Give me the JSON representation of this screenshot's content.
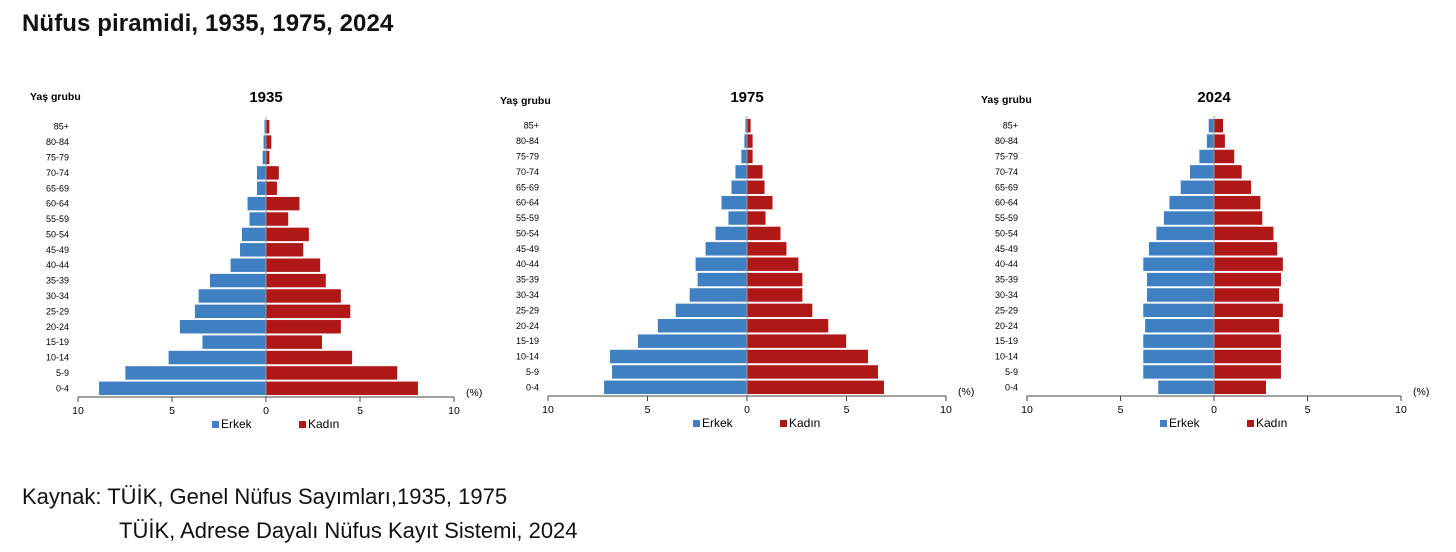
{
  "title": "Nüfus piramidi, 1935, 1975, 2024",
  "source": {
    "line1": "Kaynak: TÜİK, Genel Nüfus Sayımları,1935, 1975",
    "line2": "TÜİK, Adrese Dayalı Nüfus Kayıt Sistemi, 2024"
  },
  "colors": {
    "male": "#3f80c3",
    "female": "#b01818",
    "axis": "#444444"
  },
  "chart_data": [
    {
      "type": "bar",
      "orientation": "horizontal-pyramid",
      "title": "1935",
      "ylabel": "Yaş grubu",
      "xlabel": "(%)",
      "xlim": [
        -10,
        10
      ],
      "xticks": [
        "10",
        "5",
        "0",
        "5",
        "10"
      ],
      "categories": [
        "0-4",
        "5-9",
        "10-14",
        "15-19",
        "20-24",
        "25-29",
        "30-34",
        "35-39",
        "40-44",
        "45-49",
        "50-54",
        "55-59",
        "60-64",
        "65-69",
        "70-74",
        "75-79",
        "80-84",
        "85+"
      ],
      "series": [
        {
          "name": "Erkek",
          "values": [
            8.9,
            7.5,
            5.2,
            3.4,
            4.6,
            3.8,
            3.6,
            3.0,
            1.9,
            1.4,
            1.3,
            0.9,
            1.0,
            0.5,
            0.5,
            0.2,
            0.15,
            0.1
          ]
        },
        {
          "name": "Kadın",
          "values": [
            8.1,
            7.0,
            4.6,
            3.0,
            4.0,
            4.5,
            4.0,
            3.2,
            2.9,
            2.0,
            2.3,
            1.2,
            1.8,
            0.6,
            0.7,
            0.2,
            0.3,
            0.2
          ]
        }
      ],
      "legend": [
        "Erkek",
        "Kadın"
      ]
    },
    {
      "type": "bar",
      "orientation": "horizontal-pyramid",
      "title": "1975",
      "ylabel": "Yaş grubu",
      "xlabel": "(%)",
      "xlim": [
        -10,
        10
      ],
      "xticks": [
        "10",
        "5",
        "0",
        "5",
        "10"
      ],
      "categories": [
        "0-4",
        "5-9",
        "10-14",
        "15-19",
        "20-24",
        "25-29",
        "30-34",
        "35-39",
        "40-44",
        "45-49",
        "50-54",
        "55-59",
        "60-64",
        "65-69",
        "70-74",
        "75-79",
        "80-84",
        "85+"
      ],
      "series": [
        {
          "name": "Erkek",
          "values": [
            7.2,
            6.8,
            6.9,
            5.5,
            4.5,
            3.6,
            2.9,
            2.5,
            2.6,
            2.1,
            1.6,
            0.95,
            1.3,
            0.8,
            0.6,
            0.3,
            0.15,
            0.1
          ]
        },
        {
          "name": "Kadın",
          "values": [
            6.9,
            6.6,
            6.1,
            5.0,
            4.1,
            3.3,
            2.8,
            2.8,
            2.6,
            2.0,
            1.7,
            0.95,
            1.3,
            0.9,
            0.8,
            0.3,
            0.3,
            0.2
          ]
        }
      ],
      "legend": [
        "Erkek",
        "Kadın"
      ]
    },
    {
      "type": "bar",
      "orientation": "horizontal-pyramid",
      "title": "2024",
      "ylabel": "Yaş grubu",
      "xlabel": "(%)",
      "xlim": [
        -10,
        10
      ],
      "xticks": [
        "10",
        "5",
        "0",
        "5",
        "10"
      ],
      "categories": [
        "0-4",
        "5-9",
        "10-14",
        "15-19",
        "20-24",
        "25-29",
        "30-34",
        "35-39",
        "40-44",
        "45-49",
        "50-54",
        "55-59",
        "60-64",
        "65-69",
        "70-74",
        "75-79",
        "80-84",
        "85+"
      ],
      "series": [
        {
          "name": "Erkek",
          "values": [
            3.0,
            3.8,
            3.8,
            3.8,
            3.7,
            3.8,
            3.6,
            3.6,
            3.8,
            3.5,
            3.1,
            2.7,
            2.4,
            1.8,
            1.3,
            0.8,
            0.4,
            0.3
          ]
        },
        {
          "name": "Kadın",
          "values": [
            2.8,
            3.6,
            3.6,
            3.6,
            3.5,
            3.7,
            3.5,
            3.6,
            3.7,
            3.4,
            3.2,
            2.6,
            2.5,
            2.0,
            1.5,
            1.1,
            0.6,
            0.5
          ]
        }
      ],
      "legend": [
        "Erkek",
        "Kadın"
      ]
    }
  ]
}
